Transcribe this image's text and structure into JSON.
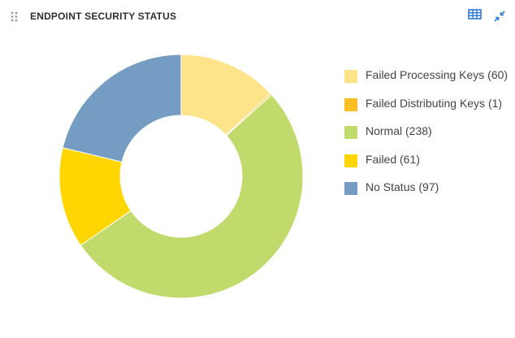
{
  "header": {
    "title": "ENDPOINT SECURITY STATUS",
    "icons": {
      "drag": "drag-handle-icon",
      "table": "table-view-icon",
      "collapse": "collapse-icon"
    },
    "accent_color": "#2b7bd6"
  },
  "legend": {
    "items": [
      {
        "label": "Failed Processing Keys (60)",
        "color": "#fde38a"
      },
      {
        "label": "Failed Distributing Keys (1)",
        "color": "#fbbf24"
      },
      {
        "label": "Normal (238)",
        "color": "#c0da6b"
      },
      {
        "label": "Failed (61)",
        "color": "#ffd600"
      },
      {
        "label": "No Status (97)",
        "color": "#759dc3"
      }
    ]
  },
  "chart_data": {
    "type": "pie",
    "style": "donut",
    "categories": [
      "Failed Processing Keys",
      "Failed Distributing Keys",
      "Normal",
      "Failed",
      "No Status"
    ],
    "values": [
      60,
      1,
      238,
      61,
      97
    ],
    "colors": [
      "#fde38a",
      "#fbbf24",
      "#c0da6b",
      "#ffd600",
      "#759dc3"
    ],
    "legend_position": "right"
  }
}
